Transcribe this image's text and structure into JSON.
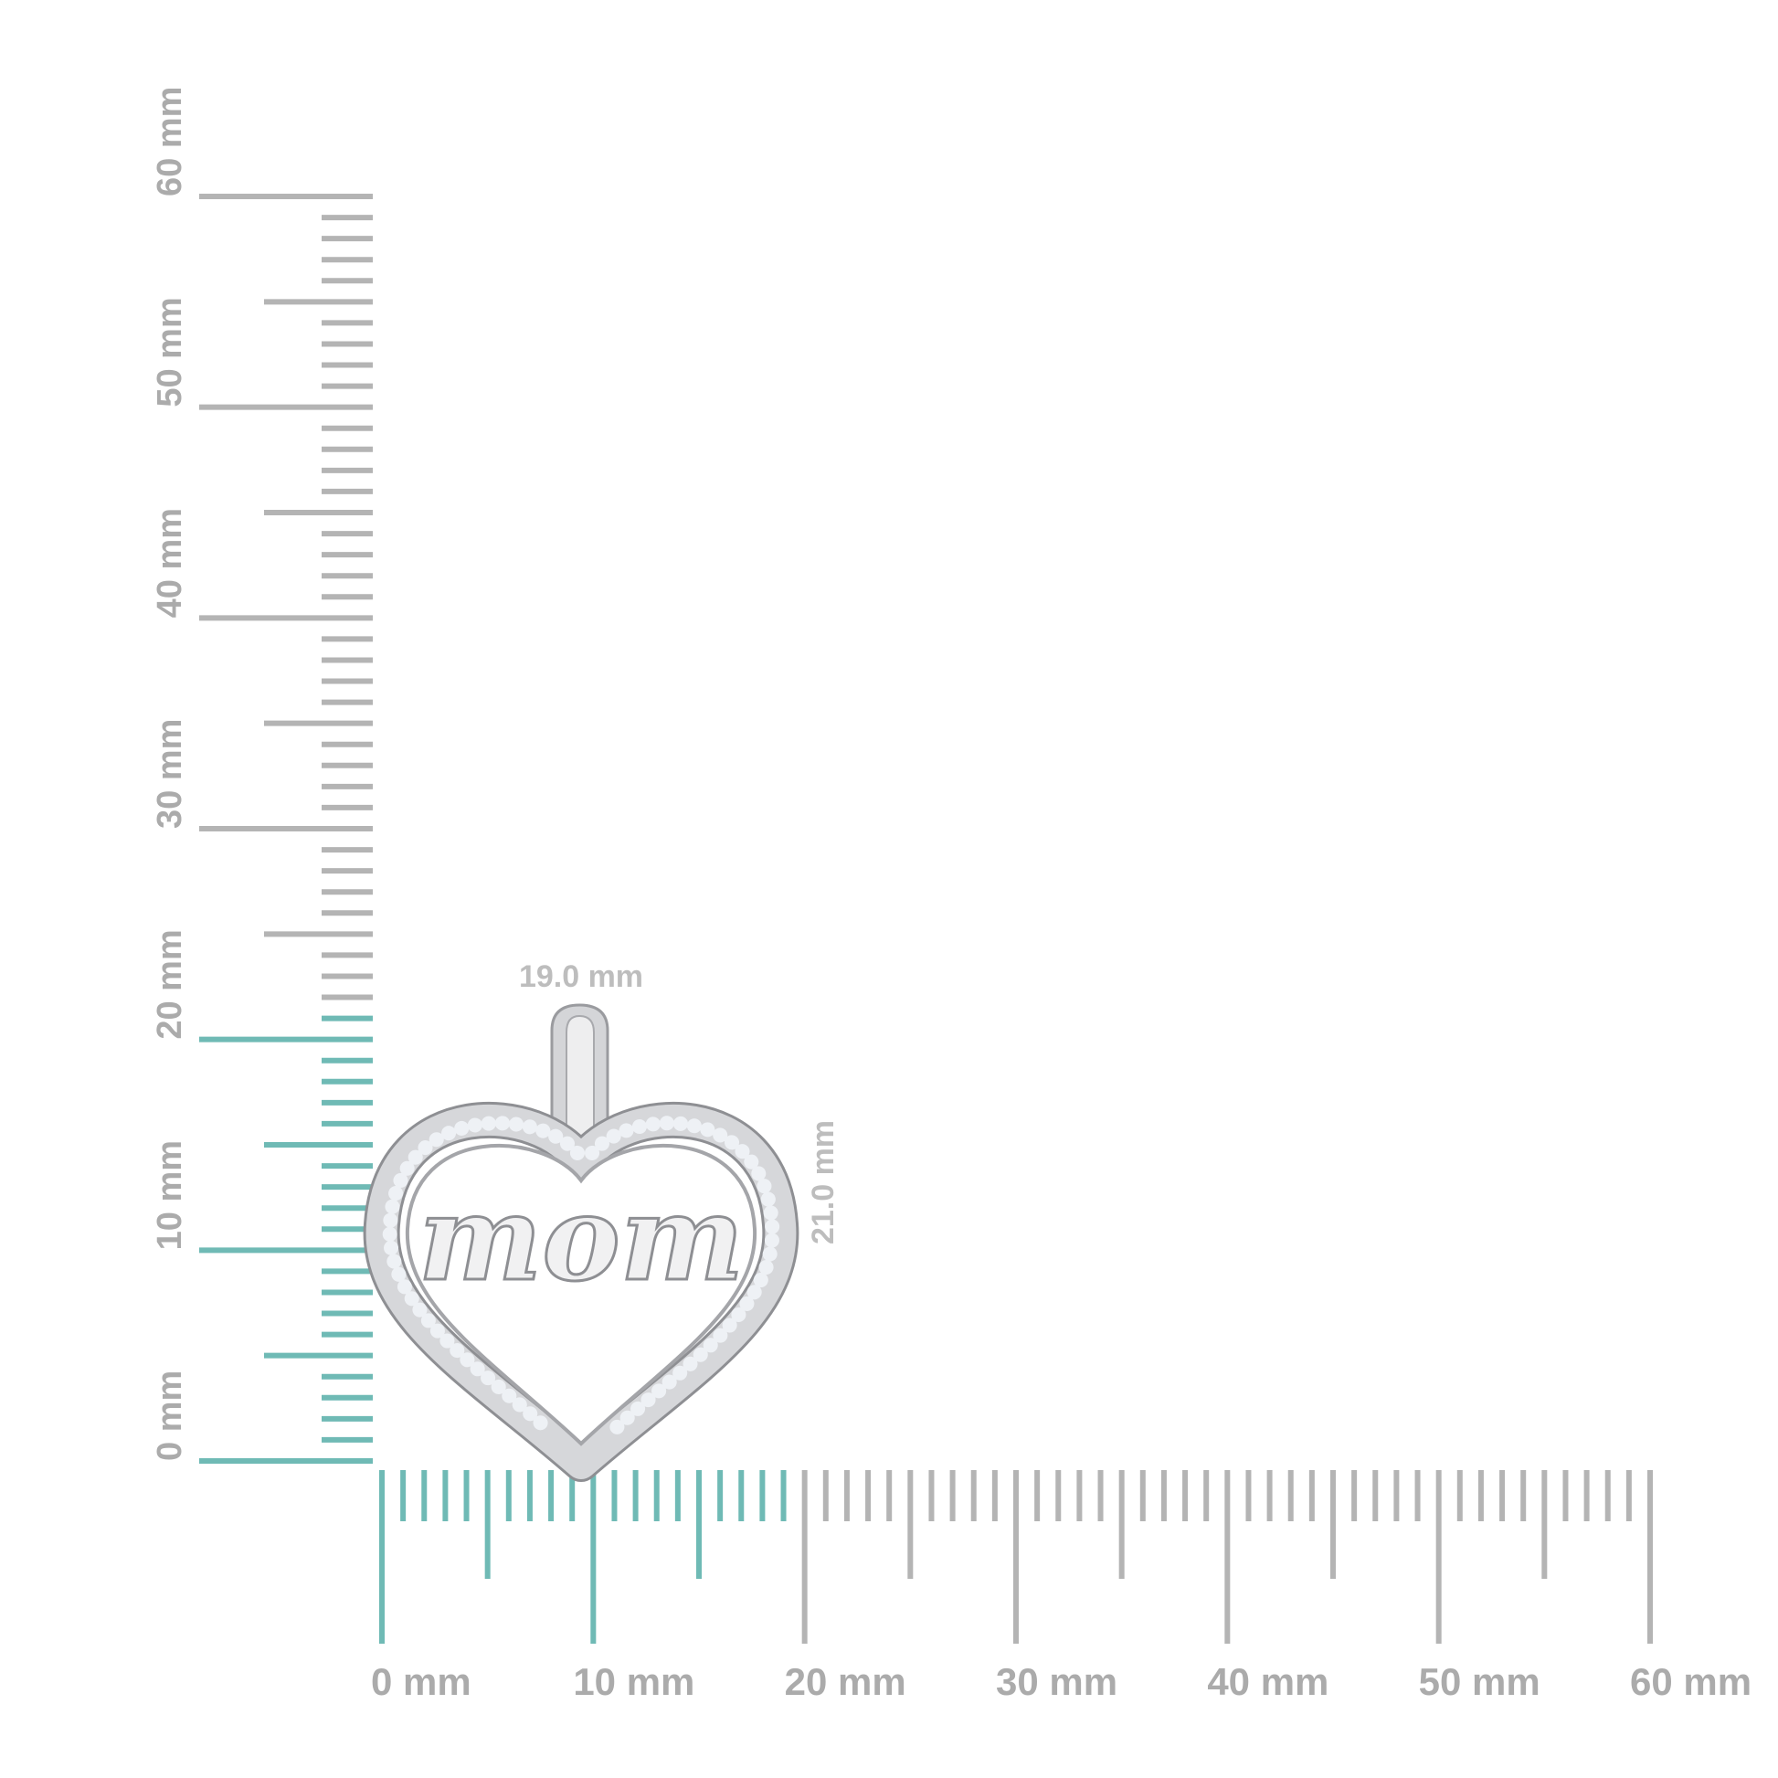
{
  "colors": {
    "highlight": "#6fbab5",
    "ruler": "#b4b4b4",
    "label": "#ababab",
    "dimension_label": "#bdbdbd",
    "metal": "#c9cacd",
    "diamond": "#e4e8ef"
  },
  "vertical_ruler": {
    "min_mm": 0,
    "max_mm": 60,
    "highlight_to_mm": 21,
    "labels": [
      "0 mm",
      "10 mm",
      "20 mm",
      "30 mm",
      "40 mm",
      "50 mm",
      "60 mm"
    ]
  },
  "horizontal_ruler": {
    "min_mm": 0,
    "max_mm": 60,
    "highlight_to_mm": 19,
    "labels": [
      "0 mm",
      "10 mm",
      "20 mm",
      "30 mm",
      "40 mm",
      "50 mm",
      "60 mm"
    ]
  },
  "product": {
    "width_label": "19.0 mm",
    "height_label": "21.0 mm",
    "engraving": "mom",
    "icon": "heart-pendant"
  }
}
